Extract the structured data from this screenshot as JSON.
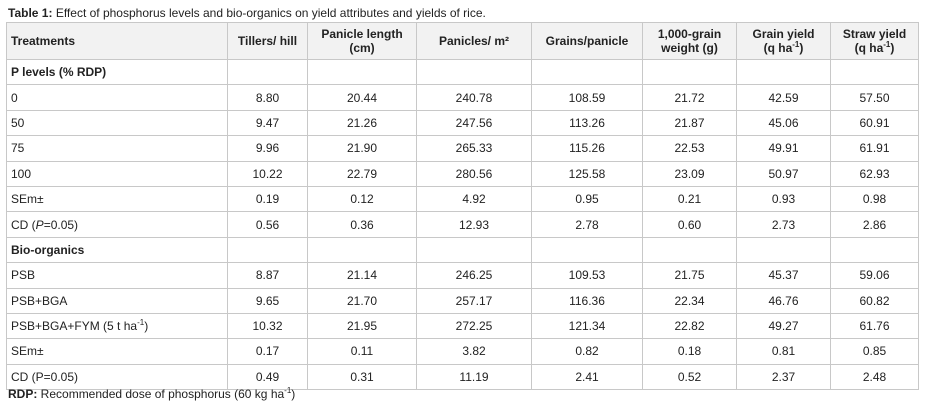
{
  "caption": {
    "label": "Table 1:",
    "text": "Effect of phosphorus levels and bio-organics on yield attributes and yields of rice."
  },
  "columns": [
    {
      "main": "Treatments",
      "unit": "",
      "sup": "",
      "tail": ""
    },
    {
      "main": "Tillers/ hill",
      "unit": "",
      "sup": "",
      "tail": ""
    },
    {
      "main": "Panicle length",
      "unit": "(cm)",
      "sup": "",
      "tail": ""
    },
    {
      "main": "Panicles/ m²",
      "unit": "",
      "sup": "",
      "tail": ""
    },
    {
      "main": "Grains/panicle",
      "unit": "",
      "sup": "",
      "tail": ""
    },
    {
      "main": "1,000-grain",
      "unit": "weight (g)",
      "sup": "",
      "tail": ""
    },
    {
      "main": "Grain yield",
      "unit": "(q ha",
      "sup": "-1",
      "tail": ")"
    },
    {
      "main": "Straw yield",
      "unit": "(q ha",
      "sup": "-1",
      "tail": ")"
    }
  ],
  "rows": [
    {
      "type": "section",
      "label": "P levels (% RDP)",
      "cells": []
    },
    {
      "type": "data",
      "label": "0",
      "cells": [
        "8.80",
        "20.44",
        "240.78",
        "108.59",
        "21.72",
        "42.59",
        "57.50"
      ]
    },
    {
      "type": "data",
      "label": "50",
      "cells": [
        "9.47",
        "21.26",
        "247.56",
        "113.26",
        "21.87",
        "45.06",
        "60.91"
      ]
    },
    {
      "type": "data",
      "label": "75",
      "cells": [
        "9.96",
        "21.90",
        "265.33",
        "115.26",
        "22.53",
        "49.91",
        "61.91"
      ]
    },
    {
      "type": "data",
      "label": "100",
      "cells": [
        "10.22",
        "22.79",
        "280.56",
        "125.58",
        "23.09",
        "50.97",
        "62.93"
      ]
    },
    {
      "type": "data",
      "label": "SEm±",
      "cells": [
        "0.19",
        "0.12",
        "4.92",
        "0.95",
        "0.21",
        "0.93",
        "0.98"
      ]
    },
    {
      "type": "cd",
      "label_pre": "CD (",
      "label_italic": "P",
      "label_post": "=0.05)",
      "cells": [
        "0.56",
        "0.36",
        "12.93",
        "2.78",
        "0.60",
        "2.73",
        "2.86"
      ]
    },
    {
      "type": "section",
      "label": "Bio-organics",
      "cells": []
    },
    {
      "type": "data",
      "label": "PSB",
      "cells": [
        "8.87",
        "21.14",
        "246.25",
        "109.53",
        "21.75",
        "45.37",
        "59.06"
      ]
    },
    {
      "type": "data",
      "label": "PSB+BGA",
      "cells": [
        "9.65",
        "21.70",
        "257.17",
        "116.36",
        "22.34",
        "46.76",
        "60.82"
      ]
    },
    {
      "type": "data",
      "label": "PSB+BGA+FYM (5 t ha",
      "sup": "-1",
      "label_post": ")",
      "cells": [
        "10.32",
        "21.95",
        "272.25",
        "121.34",
        "22.82",
        "49.27",
        "61.76"
      ]
    },
    {
      "type": "data",
      "label": "SEm±",
      "cells": [
        "0.17",
        "0.11",
        "3.82",
        "0.82",
        "0.18",
        "0.81",
        "0.85"
      ]
    },
    {
      "type": "data",
      "label": "CD (P=0.05)",
      "cells": [
        "0.49",
        "0.31",
        "11.19",
        "2.41",
        "0.52",
        "2.37",
        "2.48"
      ]
    }
  ],
  "footnote": {
    "label": "RDP:",
    "text": " Recommended dose of phosphorus (60 kg ha",
    "sup": "-1",
    "tail": ")"
  }
}
